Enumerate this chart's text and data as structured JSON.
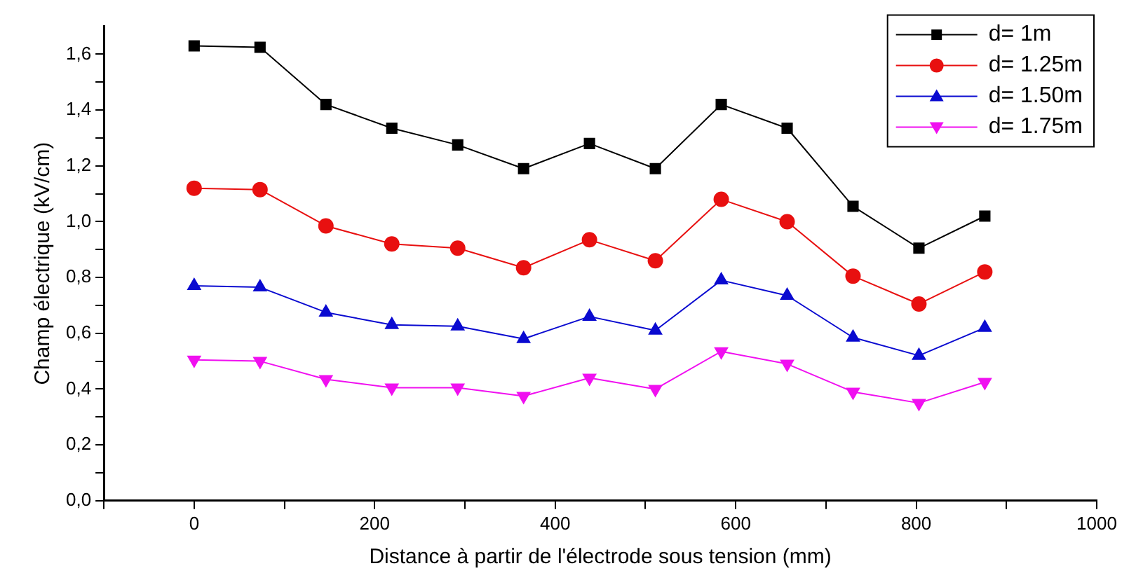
{
  "chart_data": {
    "type": "line",
    "xlabel": "Distance à partir de l'électrode sous tension (mm)",
    "ylabel": "Champ électrique (kV/cm)",
    "x": [
      0,
      73,
      146,
      219,
      292,
      365,
      438,
      511,
      584,
      657,
      730,
      803,
      876
    ],
    "series": [
      {
        "name": "d= 1m",
        "color": "#000000",
        "marker": "square",
        "values": [
          1.63,
          1.625,
          1.42,
          1.335,
          1.275,
          1.19,
          1.28,
          1.19,
          1.42,
          1.335,
          1.055,
          0.905,
          1.02
        ]
      },
      {
        "name": "d= 1.25m",
        "color": "#e81010",
        "marker": "circle",
        "values": [
          1.12,
          1.115,
          0.985,
          0.92,
          0.905,
          0.835,
          0.935,
          0.86,
          1.08,
          1.0,
          0.805,
          0.705,
          0.82
        ]
      },
      {
        "name": "d= 1.50m",
        "color": "#0a0ad0",
        "marker": "triangle",
        "values": [
          0.77,
          0.765,
          0.675,
          0.63,
          0.625,
          0.58,
          0.66,
          0.61,
          0.79,
          0.735,
          0.585,
          0.52,
          0.62
        ]
      },
      {
        "name": "d= 1.75m",
        "color": "#f010f0",
        "marker": "triangle-down",
        "values": [
          0.505,
          0.5,
          0.435,
          0.405,
          0.405,
          0.375,
          0.44,
          0.4,
          0.535,
          0.49,
          0.39,
          0.35,
          0.425
        ]
      }
    ],
    "xlim": [
      -100,
      1000
    ],
    "xticks": [
      {
        "value": -100,
        "label": null
      },
      0,
      {
        "value": 100,
        "label": null
      },
      200,
      {
        "value": 300,
        "label": null
      },
      400,
      {
        "value": 500,
        "label": null
      },
      600,
      {
        "value": 700,
        "label": null
      },
      800,
      {
        "value": 900,
        "label": null
      },
      1000
    ],
    "ylim": [
      0,
      1.7
    ],
    "yticks": [
      {
        "value": 0,
        "label": "0,0"
      },
      {
        "value": 0.1,
        "label": null
      },
      {
        "value": 0.2,
        "label": "0,2"
      },
      {
        "value": 0.3,
        "label": null
      },
      {
        "value": 0.4,
        "label": "0,4"
      },
      {
        "value": 0.5,
        "label": null
      },
      {
        "value": 0.6,
        "label": "0,6"
      },
      {
        "value": 0.7,
        "label": null
      },
      {
        "value": 0.8,
        "label": "0,8"
      },
      {
        "value": 0.9,
        "label": null
      },
      {
        "value": 1.0,
        "label": "1,0"
      },
      {
        "value": 1.1,
        "label": null
      },
      {
        "value": 1.2,
        "label": "1,2"
      },
      {
        "value": 1.3,
        "label": null
      },
      {
        "value": 1.4,
        "label": "1,4"
      },
      {
        "value": 1.5,
        "label": null
      },
      {
        "value": 1.6,
        "label": "1,6"
      }
    ],
    "grid": false,
    "legend": "top right",
    "line_style": "solid"
  }
}
